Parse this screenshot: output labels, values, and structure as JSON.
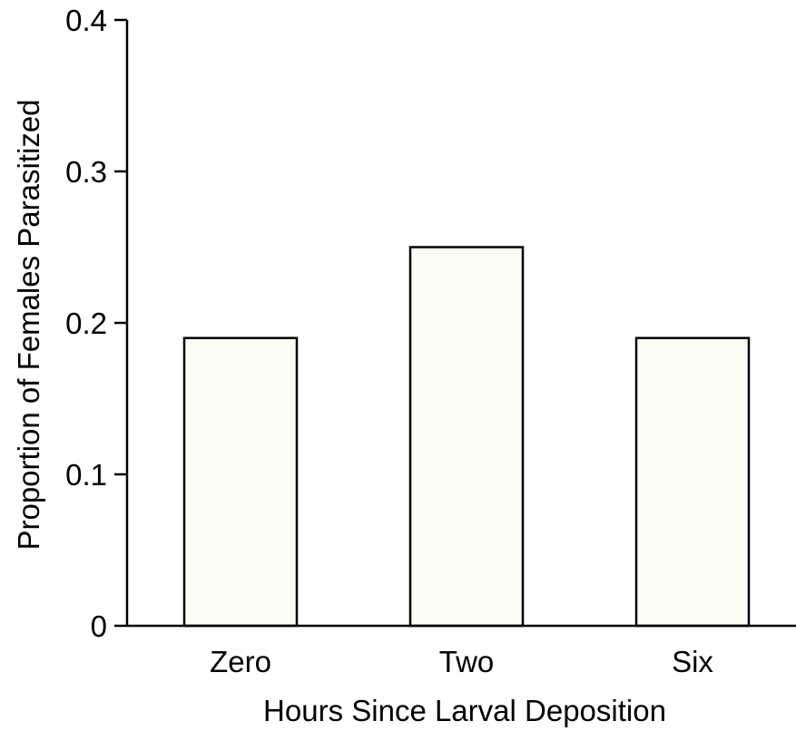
{
  "chart_data": {
    "type": "bar",
    "title": "",
    "xlabel": "Hours Since Larval Deposition",
    "ylabel": "Proportion of Females Parasitized",
    "categories": [
      "Zero",
      "Two",
      "Six"
    ],
    "values": [
      0.19,
      0.25,
      0.19
    ],
    "ylim": [
      0,
      0.4
    ],
    "yticks": [
      0,
      0.1,
      0.2,
      0.3,
      0.4
    ],
    "ytick_labels": [
      "0",
      "0.1",
      "0.2",
      "0.3",
      "0.4"
    ],
    "grid": false,
    "legend": "none",
    "bar_fill": "#fdfdf5",
    "bar_stroke": "#000000"
  }
}
